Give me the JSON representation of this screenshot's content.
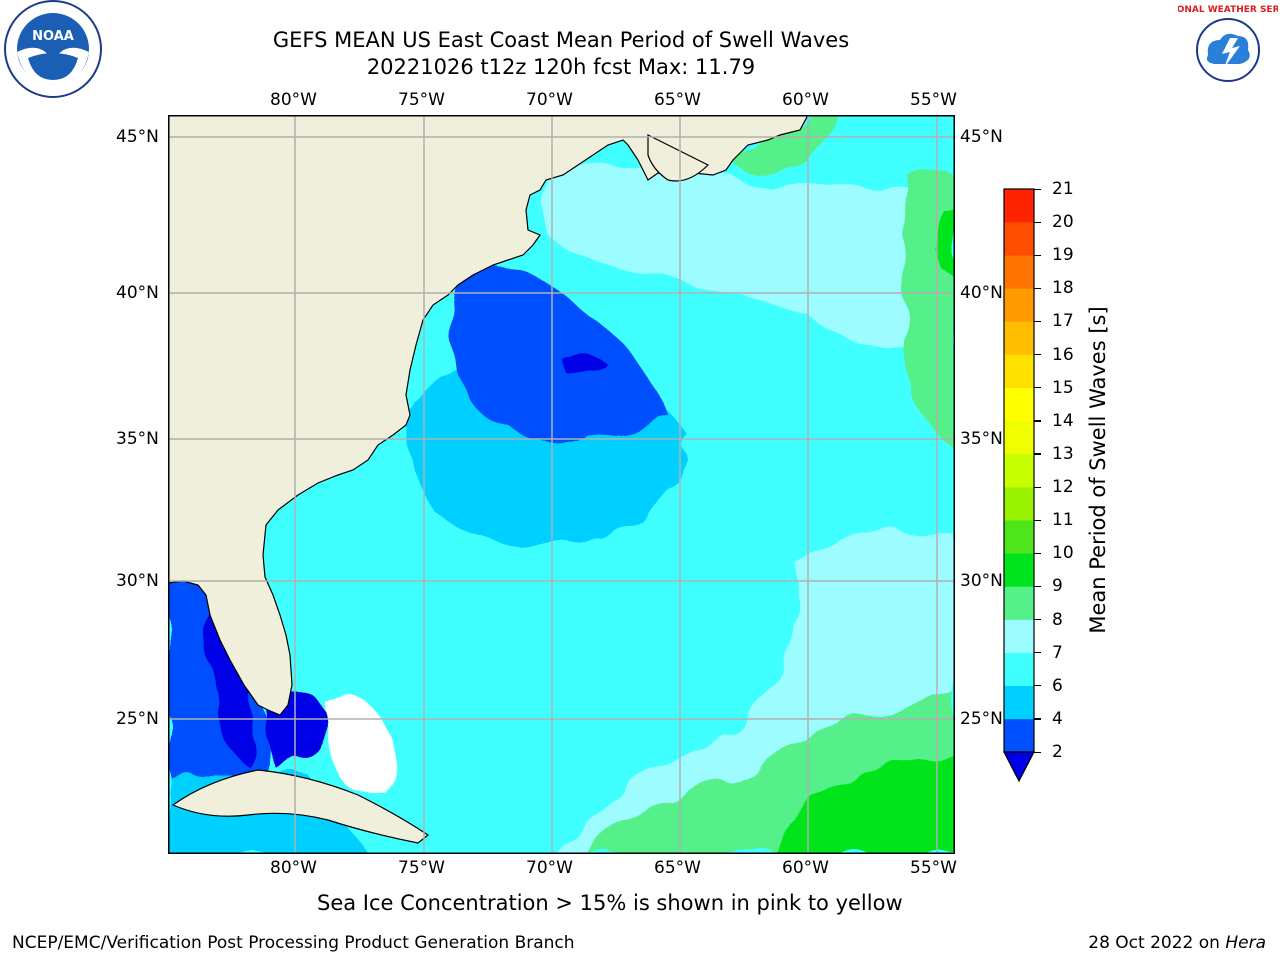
{
  "title": {
    "line1": "GEFS MEAN US East Coast Mean Period of Swell Waves",
    "line2": "20221026 t12z 120h fcst   Max: 11.79"
  },
  "map": {
    "lon_labels": [
      "80°W",
      "75°W",
      "70°W",
      "65°W",
      "60°W",
      "55°W"
    ],
    "lat_labels": [
      "45°N",
      "40°N",
      "35°N",
      "30°N",
      "25°N"
    ],
    "land_color": "#efefdc",
    "grid_color": "#b0b0b0"
  },
  "colorbar": {
    "label": "Mean Period of Swell Waves [s]",
    "ticks": [
      "2",
      "4",
      "6",
      "7",
      "8",
      "9",
      "10",
      "11",
      "12",
      "13",
      "14",
      "15",
      "16",
      "17",
      "18",
      "19",
      "20",
      "21"
    ],
    "colors": [
      "#0050ff",
      "#00d0ff",
      "#40ffff",
      "#9cfcff",
      "#55f089",
      "#00e41e",
      "#4ee51c",
      "#98f200",
      "#c8ff00",
      "#f0ff00",
      "#ffff00",
      "#ffe100",
      "#ffbe00",
      "#ff9a00",
      "#ff7400",
      "#ff4e00",
      "#ff2400"
    ],
    "under_color": "#0000e6"
  },
  "caption": "Sea Ice Concentration > 15% is shown in pink to yellow",
  "footer": {
    "left": "NCEP/EMC/Verification Post Processing Product Generation Branch",
    "date": "28 Oct 2022 on ",
    "machine": "Hera"
  },
  "logos": {
    "noaa": "NOAA",
    "nws": "NATIONAL WEATHER SERVICE"
  }
}
